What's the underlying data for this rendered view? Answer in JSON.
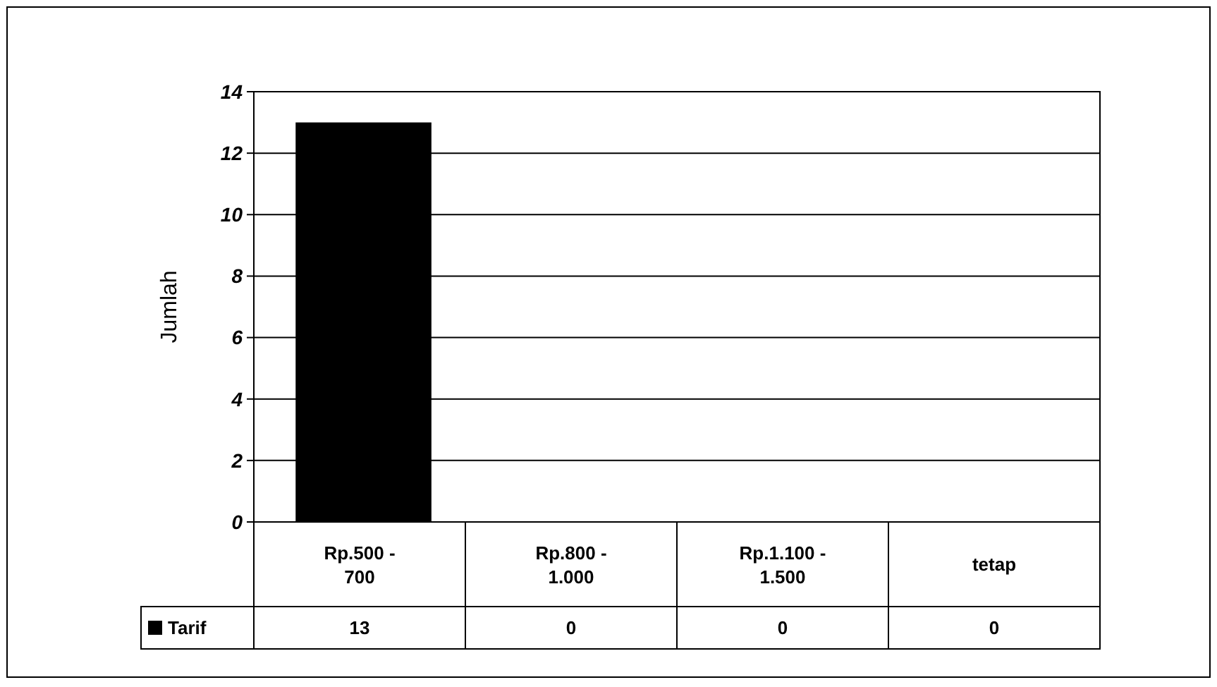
{
  "chart_data": {
    "type": "bar",
    "ylabel": "Jumlah",
    "categories": [
      "Rp.500 - 700",
      "Rp.800 - 1.000",
      "Rp.1.100 - 1.500",
      "tetap"
    ],
    "series": [
      {
        "name": "Tarif",
        "color": "#000000",
        "values": [
          13,
          0,
          0,
          0
        ]
      }
    ],
    "ylim": [
      0,
      14
    ],
    "yticks": [
      0,
      2,
      4,
      6,
      8,
      10,
      12,
      14
    ],
    "grid": "y",
    "legend": "bottom",
    "data_labels": true
  }
}
